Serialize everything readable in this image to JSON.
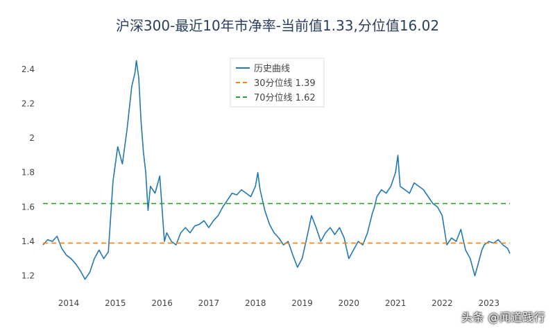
{
  "watermark": "头条 @闻道践行",
  "chart_data": {
    "type": "line",
    "title": "沪深300-最近10年市净率-当前值1.33,分位值16.02",
    "xlabel": "",
    "ylabel": "",
    "ylim": [
      1.13,
      2.5
    ],
    "y_ticks": [
      1.2,
      1.4,
      1.6,
      1.8,
      2,
      2.2,
      2.4
    ],
    "y_tick_labels": [
      "1.2",
      "1.4",
      "1.6",
      "1.8",
      "2",
      "2.2",
      "2.4"
    ],
    "x_range": [
      2013.45,
      2023.45
    ],
    "x_ticks": [
      2014,
      2015,
      2016,
      2017,
      2018,
      2019,
      2020,
      2021,
      2022,
      2023
    ],
    "x_tick_labels": [
      "2014",
      "2015",
      "2016",
      "2017",
      "2018",
      "2019",
      "2020",
      "2021",
      "2022",
      "2023"
    ],
    "grid": false,
    "legend_position": "top-center",
    "colors": {
      "history": "#1f77b4",
      "p30": "#ff7f0e",
      "p70": "#2ca02c",
      "axis_text": "#444444",
      "title": "#2a3f5f"
    },
    "series": [
      {
        "name": "历史曲线",
        "x": [
          2013.45,
          2013.55,
          2013.65,
          2013.75,
          2013.85,
          2013.95,
          2014.05,
          2014.15,
          2014.25,
          2014.35,
          2014.45,
          2014.55,
          2014.65,
          2014.75,
          2014.85,
          2014.95,
          2015.05,
          2015.15,
          2015.25,
          2015.35,
          2015.42,
          2015.45,
          2015.5,
          2015.55,
          2015.6,
          2015.65,
          2015.7,
          2015.75,
          2015.85,
          2015.95,
          2016.05,
          2016.1,
          2016.2,
          2016.3,
          2016.4,
          2016.5,
          2016.6,
          2016.7,
          2016.8,
          2016.9,
          2017.0,
          2017.1,
          2017.2,
          2017.3,
          2017.4,
          2017.5,
          2017.6,
          2017.7,
          2017.8,
          2017.9,
          2018.0,
          2018.05,
          2018.1,
          2018.2,
          2018.3,
          2018.4,
          2018.5,
          2018.6,
          2018.7,
          2018.8,
          2018.9,
          2019.0,
          2019.1,
          2019.2,
          2019.3,
          2019.4,
          2019.5,
          2019.6,
          2019.7,
          2019.8,
          2019.9,
          2020.0,
          2020.1,
          2020.2,
          2020.3,
          2020.4,
          2020.5,
          2020.55,
          2020.6,
          2020.7,
          2020.8,
          2020.9,
          2021.0,
          2021.05,
          2021.1,
          2021.2,
          2021.3,
          2021.4,
          2021.5,
          2021.6,
          2021.7,
          2021.8,
          2021.9,
          2022.0,
          2022.1,
          2022.2,
          2022.3,
          2022.4,
          2022.5,
          2022.6,
          2022.7,
          2022.8,
          2022.85,
          2022.9,
          2023.0,
          2023.1,
          2023.2,
          2023.3,
          2023.4,
          2023.45
        ],
        "values": [
          1.38,
          1.41,
          1.4,
          1.43,
          1.36,
          1.32,
          1.3,
          1.27,
          1.23,
          1.18,
          1.22,
          1.3,
          1.35,
          1.3,
          1.34,
          1.75,
          1.95,
          1.85,
          2.05,
          2.3,
          2.38,
          2.45,
          2.35,
          2.1,
          1.92,
          1.8,
          1.58,
          1.72,
          1.68,
          1.78,
          1.4,
          1.45,
          1.4,
          1.38,
          1.45,
          1.48,
          1.45,
          1.49,
          1.5,
          1.52,
          1.48,
          1.52,
          1.55,
          1.6,
          1.64,
          1.68,
          1.67,
          1.7,
          1.68,
          1.66,
          1.72,
          1.8,
          1.7,
          1.58,
          1.5,
          1.45,
          1.42,
          1.38,
          1.4,
          1.32,
          1.25,
          1.3,
          1.42,
          1.55,
          1.48,
          1.4,
          1.45,
          1.48,
          1.44,
          1.48,
          1.42,
          1.3,
          1.35,
          1.4,
          1.38,
          1.45,
          1.56,
          1.6,
          1.66,
          1.7,
          1.68,
          1.72,
          1.8,
          1.9,
          1.72,
          1.7,
          1.68,
          1.74,
          1.72,
          1.7,
          1.66,
          1.62,
          1.6,
          1.55,
          1.38,
          1.42,
          1.4,
          1.47,
          1.35,
          1.3,
          1.2,
          1.3,
          1.35,
          1.38,
          1.4,
          1.39,
          1.41,
          1.38,
          1.36,
          1.33
        ]
      },
      {
        "name": "30分位线 1.39",
        "value": 1.39
      },
      {
        "name": "70分位线 1.62",
        "value": 1.62
      }
    ]
  }
}
